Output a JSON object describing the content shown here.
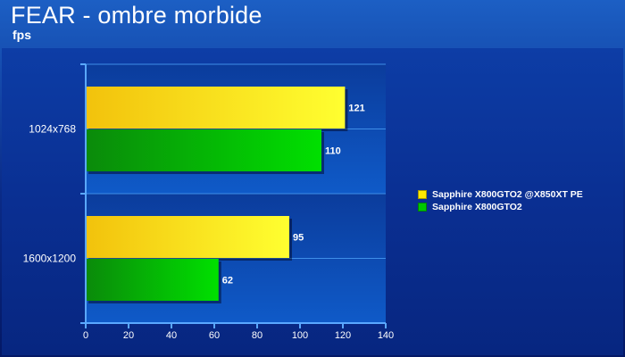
{
  "header": {
    "title": "FEAR - ombre morbide",
    "subtitle": "fps"
  },
  "colors": {
    "series_1": "#ffea00",
    "series_2": "#00c800"
  },
  "chart_data": {
    "type": "bar",
    "orientation": "horizontal",
    "categories": [
      "1024x768",
      "1600x1200"
    ],
    "series": [
      {
        "name": "Sapphire X800GTO2 @X850XT PE",
        "values": [
          121,
          95
        ]
      },
      {
        "name": "Sapphire X800GTO2",
        "values": [
          110,
          62
        ]
      }
    ],
    "xlim": [
      0,
      140
    ],
    "xticks": [
      0,
      20,
      40,
      60,
      80,
      100,
      120,
      140
    ],
    "grid": true,
    "legend_position": "right",
    "data_labels": true
  }
}
